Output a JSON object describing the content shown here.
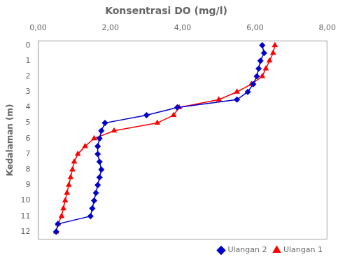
{
  "chart_data": {
    "type": "line",
    "title": "Konsentrasi DO (mg/l)",
    "ylabel": "Kedalaman (m)",
    "xlim": [
      0,
      8.0
    ],
    "ylim": [
      12.5,
      -0.3
    ],
    "xticks": [
      {
        "value": 0.0,
        "label": "0,00"
      },
      {
        "value": 2.0,
        "label": "2,00"
      },
      {
        "value": 4.0,
        "label": "4,00"
      },
      {
        "value": 6.0,
        "label": "6,00"
      },
      {
        "value": 8.0,
        "label": "8,00"
      }
    ],
    "yticks": [
      0,
      1,
      2,
      3,
      4,
      5,
      6,
      7,
      8,
      9,
      10,
      11,
      12
    ],
    "series": [
      {
        "name": "Ulangan 2",
        "color": "#0000CD",
        "marker": "diamond",
        "x": [
          6.2,
          6.25,
          6.15,
          6.1,
          6.05,
          5.95,
          5.8,
          5.5,
          3.85,
          3.0,
          1.85,
          1.75,
          1.7,
          1.65,
          1.65,
          1.7,
          1.75,
          1.7,
          1.65,
          1.6,
          1.55,
          1.5,
          1.45,
          0.55,
          0.5
        ],
        "values": [
          0,
          0.5,
          1,
          1.5,
          2,
          2.5,
          3,
          3.5,
          4,
          4.5,
          5,
          5.5,
          6,
          6.5,
          7,
          7.5,
          8,
          8.5,
          9,
          9.5,
          10,
          10.5,
          11,
          11.5,
          12
        ]
      },
      {
        "name": "Ulangan 1",
        "color": "#FF0000",
        "marker": "triangle",
        "x": [
          6.55,
          6.5,
          6.4,
          6.3,
          6.2,
          5.9,
          5.5,
          5.0,
          3.9,
          3.75,
          3.3,
          2.1,
          1.55,
          1.3,
          1.1,
          1.0,
          0.95,
          0.9,
          0.85,
          0.8,
          0.75,
          0.7,
          0.65,
          0.55,
          0.5
        ],
        "values": [
          0,
          0.5,
          1,
          1.5,
          2,
          2.5,
          3,
          3.5,
          4,
          4.5,
          5,
          5.5,
          6,
          6.5,
          7,
          7.5,
          8,
          8.5,
          9,
          9.5,
          10,
          10.5,
          11,
          11.5,
          12
        ]
      }
    ],
    "grid": false,
    "legend": "lower right"
  }
}
